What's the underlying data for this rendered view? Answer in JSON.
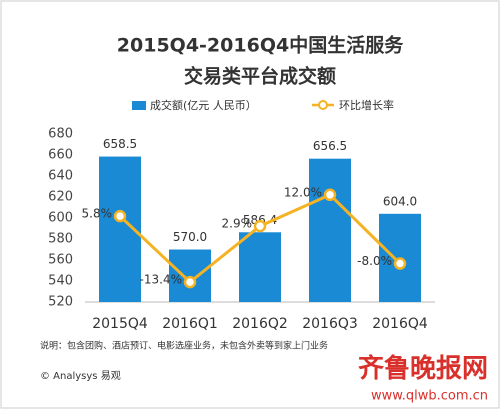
{
  "chart_data": {
    "type": "combo",
    "title": [
      "2015Q4-2016Q4中国生活服务",
      "交易类平台成交额"
    ],
    "categories": [
      "2015Q4",
      "2016Q1",
      "2016Q2",
      "2016Q3",
      "2016Q4"
    ],
    "series": [
      {
        "name": "成交额(亿元 人民币）",
        "type": "bar",
        "color": "#1a8ad4",
        "values": [
          658.5,
          570.0,
          586.4,
          656.5,
          604.0
        ],
        "value_labels": [
          "658.5",
          "570.0",
          "586.4",
          "656.5",
          "604.0"
        ]
      },
      {
        "name": "环比增长率",
        "type": "line",
        "axis": "y2",
        "color": "#f5b323",
        "values": [
          5.8,
          -13.4,
          2.9,
          12.0,
          -8.0
        ],
        "value_labels": [
          "5.8%",
          "-13.4%",
          "2.9%",
          "12.0%",
          "-8.0%"
        ]
      }
    ],
    "ylim": [
      520,
      680
    ],
    "yticks": [
      520,
      540,
      560,
      580,
      600,
      620,
      640,
      660,
      680
    ],
    "y2lim": [
      -19.2,
      29.7
    ],
    "grid": false
  },
  "footer": {
    "note": "说明：包含团购、酒店预订、电影选座业务，未包含外卖等到家上门业务",
    "source": "© Analysys 易观",
    "watermark": "齐鲁晚报网",
    "watermark_url": "www.qlwb.com.cn"
  }
}
